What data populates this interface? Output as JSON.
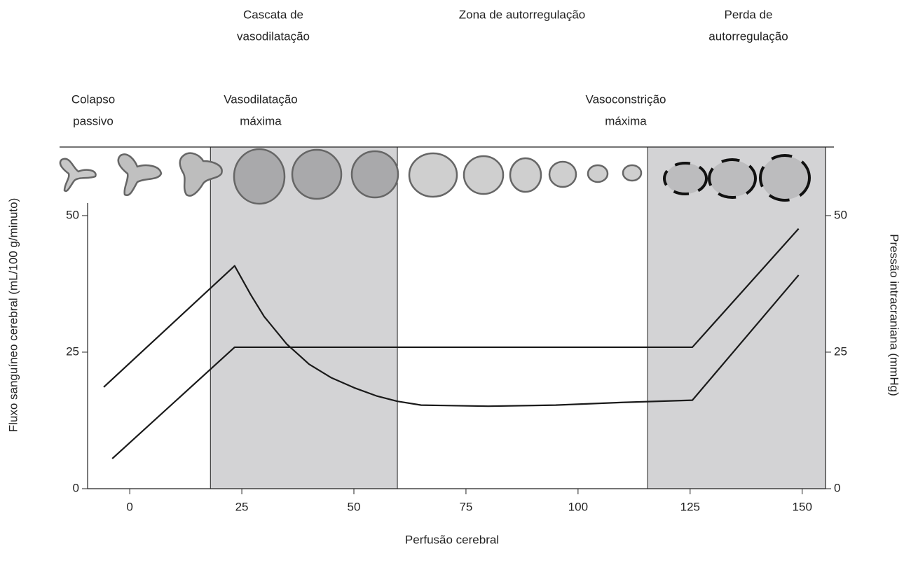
{
  "chart_data": {
    "type": "line",
    "x_label": "Perfusão cerebral",
    "y_label": "Fluxo sanguíneo cerebral (mL/100 g/minuto)",
    "y2_label": "Pressão intracraniana (mmHg)",
    "xlim": [
      -9.4,
      155.2
    ],
    "xticks": [
      0,
      25,
      50,
      75,
      100,
      125,
      150
    ],
    "ylim": [
      0,
      52.3
    ],
    "yticks": [
      0,
      25,
      50
    ],
    "y2lim": [
      0,
      52.3
    ],
    "y2ticks": [
      0,
      25,
      50
    ],
    "bands": [
      [
        18.0,
        59.7
      ],
      [
        115.5,
        155.2
      ]
    ],
    "band_color": "#d3d3d5",
    "annotations_top": [
      {
        "lines": [
          "Cascata de",
          "vasodilatação"
        ]
      },
      {
        "lines": [
          "Zona de autorregulação"
        ]
      },
      {
        "lines": [
          "Perda de",
          "autorregulação"
        ]
      }
    ],
    "annotations_bottom": [
      {
        "lines": [
          "Colapso",
          "passivo"
        ]
      },
      {
        "lines": [
          "Vasodilatação",
          "máxima"
        ]
      },
      {
        "lines": [
          "Vasoconstrição",
          "máxima"
        ]
      }
    ],
    "series": [
      {
        "color": "#1a1a1a",
        "x": [
          -3.9,
          23.4,
          125.5,
          149.2
        ],
        "values": [
          5.5,
          25.9,
          25.9,
          47.6
        ]
      },
      {
        "color": "#1a1a1a",
        "axis": "y2",
        "x": [
          -5.8,
          23.4,
          27,
          30,
          35,
          40,
          45,
          50,
          55,
          59.7,
          65,
          80,
          95,
          110,
          125.5,
          149.2
        ],
        "values": [
          18.6,
          40.8,
          35.5,
          31.5,
          26.5,
          22.8,
          20.3,
          18.5,
          17.0,
          16.0,
          15.3,
          15.1,
          15.3,
          15.8,
          16.2,
          39.1
        ]
      }
    ]
  }
}
